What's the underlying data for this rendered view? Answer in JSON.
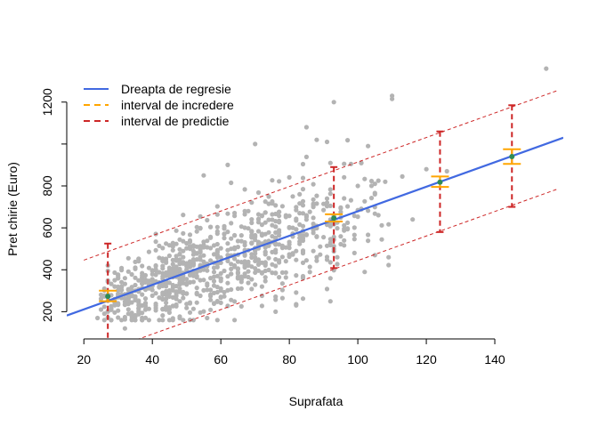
{
  "chart_data": {
    "type": "scatter",
    "xlabel": "Suprafata",
    "ylabel": "Pret chirie (Euro)",
    "xlim": [
      15,
      160
    ],
    "ylim": [
      70,
      1390
    ],
    "x_ticks": [
      20,
      40,
      60,
      80,
      100,
      120,
      140
    ],
    "y_ticks": [
      200,
      400,
      600,
      800,
      1000,
      1200
    ],
    "y_tick_labels": [
      "200",
      "400",
      "600",
      "800",
      "",
      "1200"
    ],
    "grid": false,
    "legend_position": "top-left",
    "colors": {
      "points": "#b3b3b3",
      "regression": "#4169e1",
      "confidence": "#ffa500",
      "prediction": "#cd2626",
      "fitted_point": "#2e8b57"
    },
    "legend": [
      {
        "label": "Dreapta de regresie",
        "style": "solid",
        "color": "#4169e1"
      },
      {
        "label": "interval de incredere",
        "style": "dashed",
        "color": "#ffa500"
      },
      {
        "label": "interval de predictie",
        "style": "dashed",
        "color": "#cd2626"
      }
    ],
    "regression_line": {
      "intercept": 94,
      "slope": 5.85,
      "x_range": [
        15,
        160
      ]
    },
    "prediction_band": {
      "lower_offset": -235,
      "upper_offset": 235,
      "x_range": [
        15,
        158
      ]
    },
    "intervals": [
      {
        "x": 27,
        "fit": 273,
        "ci": [
          250,
          300
        ],
        "pi": [
          35,
          525
        ]
      },
      {
        "x": 93,
        "fit": 646,
        "ci": [
          630,
          665
        ],
        "pi": [
          408,
          890
        ]
      },
      {
        "x": 124,
        "fit": 818,
        "ci": [
          795,
          845
        ],
        "pi": [
          580,
          1060
        ]
      },
      {
        "x": 145,
        "fit": 940,
        "ci": [
          905,
          975
        ],
        "pi": [
          700,
          1185
        ]
      }
    ],
    "scatter": {
      "n": 900,
      "x_range": [
        20,
        110
      ],
      "outliers": [
        {
          "x": 155,
          "y": 1360
        },
        {
          "x": 110,
          "y": 1230
        },
        {
          "x": 110,
          "y": 1215
        },
        {
          "x": 93,
          "y": 1200
        },
        {
          "x": 120,
          "y": 880
        },
        {
          "x": 126,
          "y": 870
        },
        {
          "x": 113,
          "y": 845
        },
        {
          "x": 101,
          "y": 910
        },
        {
          "x": 98,
          "y": 905
        },
        {
          "x": 103,
          "y": 990
        },
        {
          "x": 85,
          "y": 1080
        },
        {
          "x": 91,
          "y": 1010
        },
        {
          "x": 88,
          "y": 1020
        },
        {
          "x": 100,
          "y": 800
        },
        {
          "x": 105,
          "y": 760
        },
        {
          "x": 108,
          "y": 820
        },
        {
          "x": 116,
          "y": 640
        },
        {
          "x": 99,
          "y": 480
        },
        {
          "x": 105,
          "y": 470
        },
        {
          "x": 32,
          "y": 120
        },
        {
          "x": 38,
          "y": 210
        },
        {
          "x": 70,
          "y": 1000
        },
        {
          "x": 62,
          "y": 900
        },
        {
          "x": 55,
          "y": 850
        },
        {
          "x": 76,
          "y": 200
        },
        {
          "x": 82,
          "y": 230
        },
        {
          "x": 45,
          "y": 160
        }
      ]
    }
  }
}
